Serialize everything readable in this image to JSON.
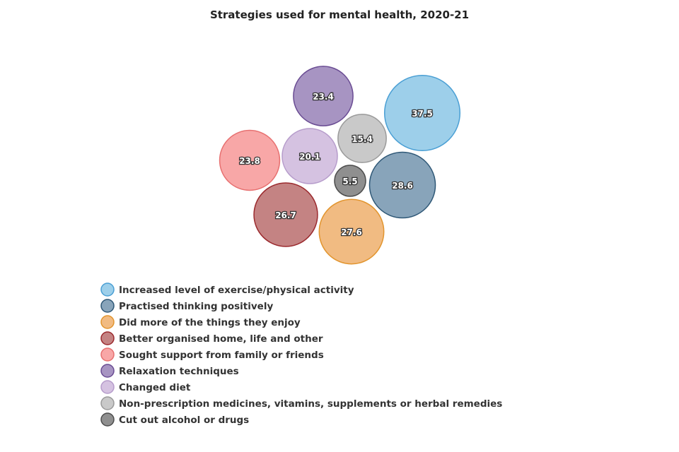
{
  "chart_data": {
    "type": "bubble",
    "title": "Strategies used for mental health, 2020-21",
    "legend_position": "bottom-left",
    "series": [
      {
        "name": "Increased level of exercise/physical activity",
        "value": 37.5,
        "color": "#9dcfea",
        "stroke": "#4a9fd4"
      },
      {
        "name": "Practised thinking positively",
        "value": 28.6,
        "color": "#88a4ba",
        "stroke": "#2f5877"
      },
      {
        "name": "Did more of the things they enjoy",
        "value": 27.6,
        "color": "#f1bb82",
        "stroke": "#e2952f"
      },
      {
        "name": "Better organised home, life and other",
        "value": 26.7,
        "color": "#c48383",
        "stroke": "#9b2a2e"
      },
      {
        "name": "Sought support from family or friends",
        "value": 23.8,
        "color": "#f8a7a7",
        "stroke": "#e77070"
      },
      {
        "name": "Relaxation techniques",
        "value": 23.4,
        "color": "#a794c2",
        "stroke": "#6a4c93"
      },
      {
        "name": "Changed diet",
        "value": 20.1,
        "color": "#d5c2e1",
        "stroke": "#b69ccb"
      },
      {
        "name": "Non-prescription medicines, vitamins, supplements or herbal remedies",
        "value": 15.4,
        "color": "#c9c9c9",
        "stroke": "#9a9a9a"
      },
      {
        "name": "Cut out alcohol or drugs",
        "value": 5.5,
        "color": "#8f8f8f",
        "stroke": "#4d4d4d"
      }
    ]
  }
}
